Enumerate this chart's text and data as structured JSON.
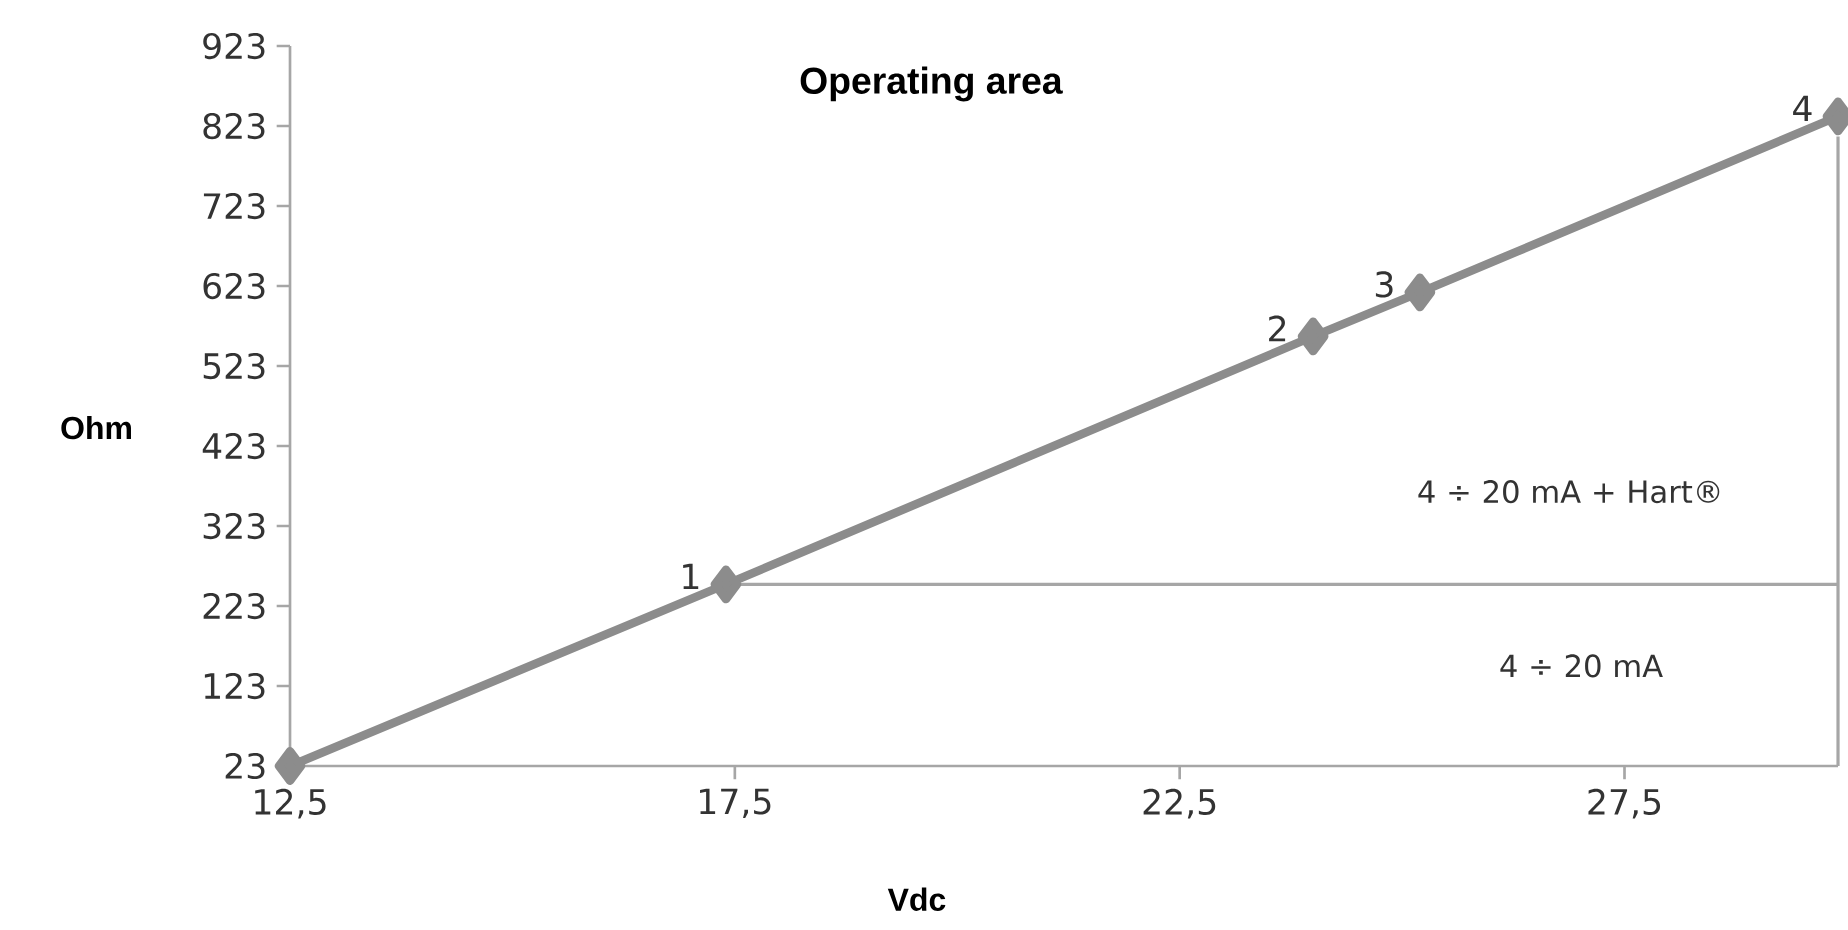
{
  "chart_data": {
    "type": "line",
    "title": "Operating area",
    "xlabel": "Vdc",
    "ylabel": "Ohm",
    "xlim": [
      12.5,
      29.9
    ],
    "ylim": [
      23,
      923
    ],
    "xticks": [
      {
        "value": 12.5,
        "label": "12,5"
      },
      {
        "value": 17.5,
        "label": "17,5"
      },
      {
        "value": 22.5,
        "label": "22,5"
      },
      {
        "value": 27.5,
        "label": "27,5"
      }
    ],
    "yticks": [
      23,
      123,
      223,
      323,
      423,
      523,
      623,
      723,
      823,
      923
    ],
    "marker": "diamond",
    "series": [
      {
        "color": "#8c8c8c",
        "x": [
          12.5,
          17.4,
          24,
          25.2,
          29.9
        ],
        "values": [
          23,
          250,
          560,
          615,
          835
        ]
      },
      {
        "color": "#a6a6a6",
        "marker": "none",
        "x": [
          17.4,
          29.9
        ],
        "values": [
          250,
          250
        ]
      },
      {
        "color": "#a6a6a6",
        "marker": "none",
        "x": [
          29.9,
          29.9
        ],
        "values": [
          23,
          810
        ]
      }
    ],
    "annotations": [
      "4 ÷ 20 mA + Hart®",
      "4 ÷ 20 mA",
      {
        "text": "1",
        "x": 17.4,
        "y": 250
      },
      {
        "text": "2",
        "x": 24,
        "y": 560
      },
      {
        "text": "3",
        "x": 25.2,
        "y": 615
      },
      {
        "text": "4",
        "x": 29.9,
        "y": 835
      }
    ]
  }
}
